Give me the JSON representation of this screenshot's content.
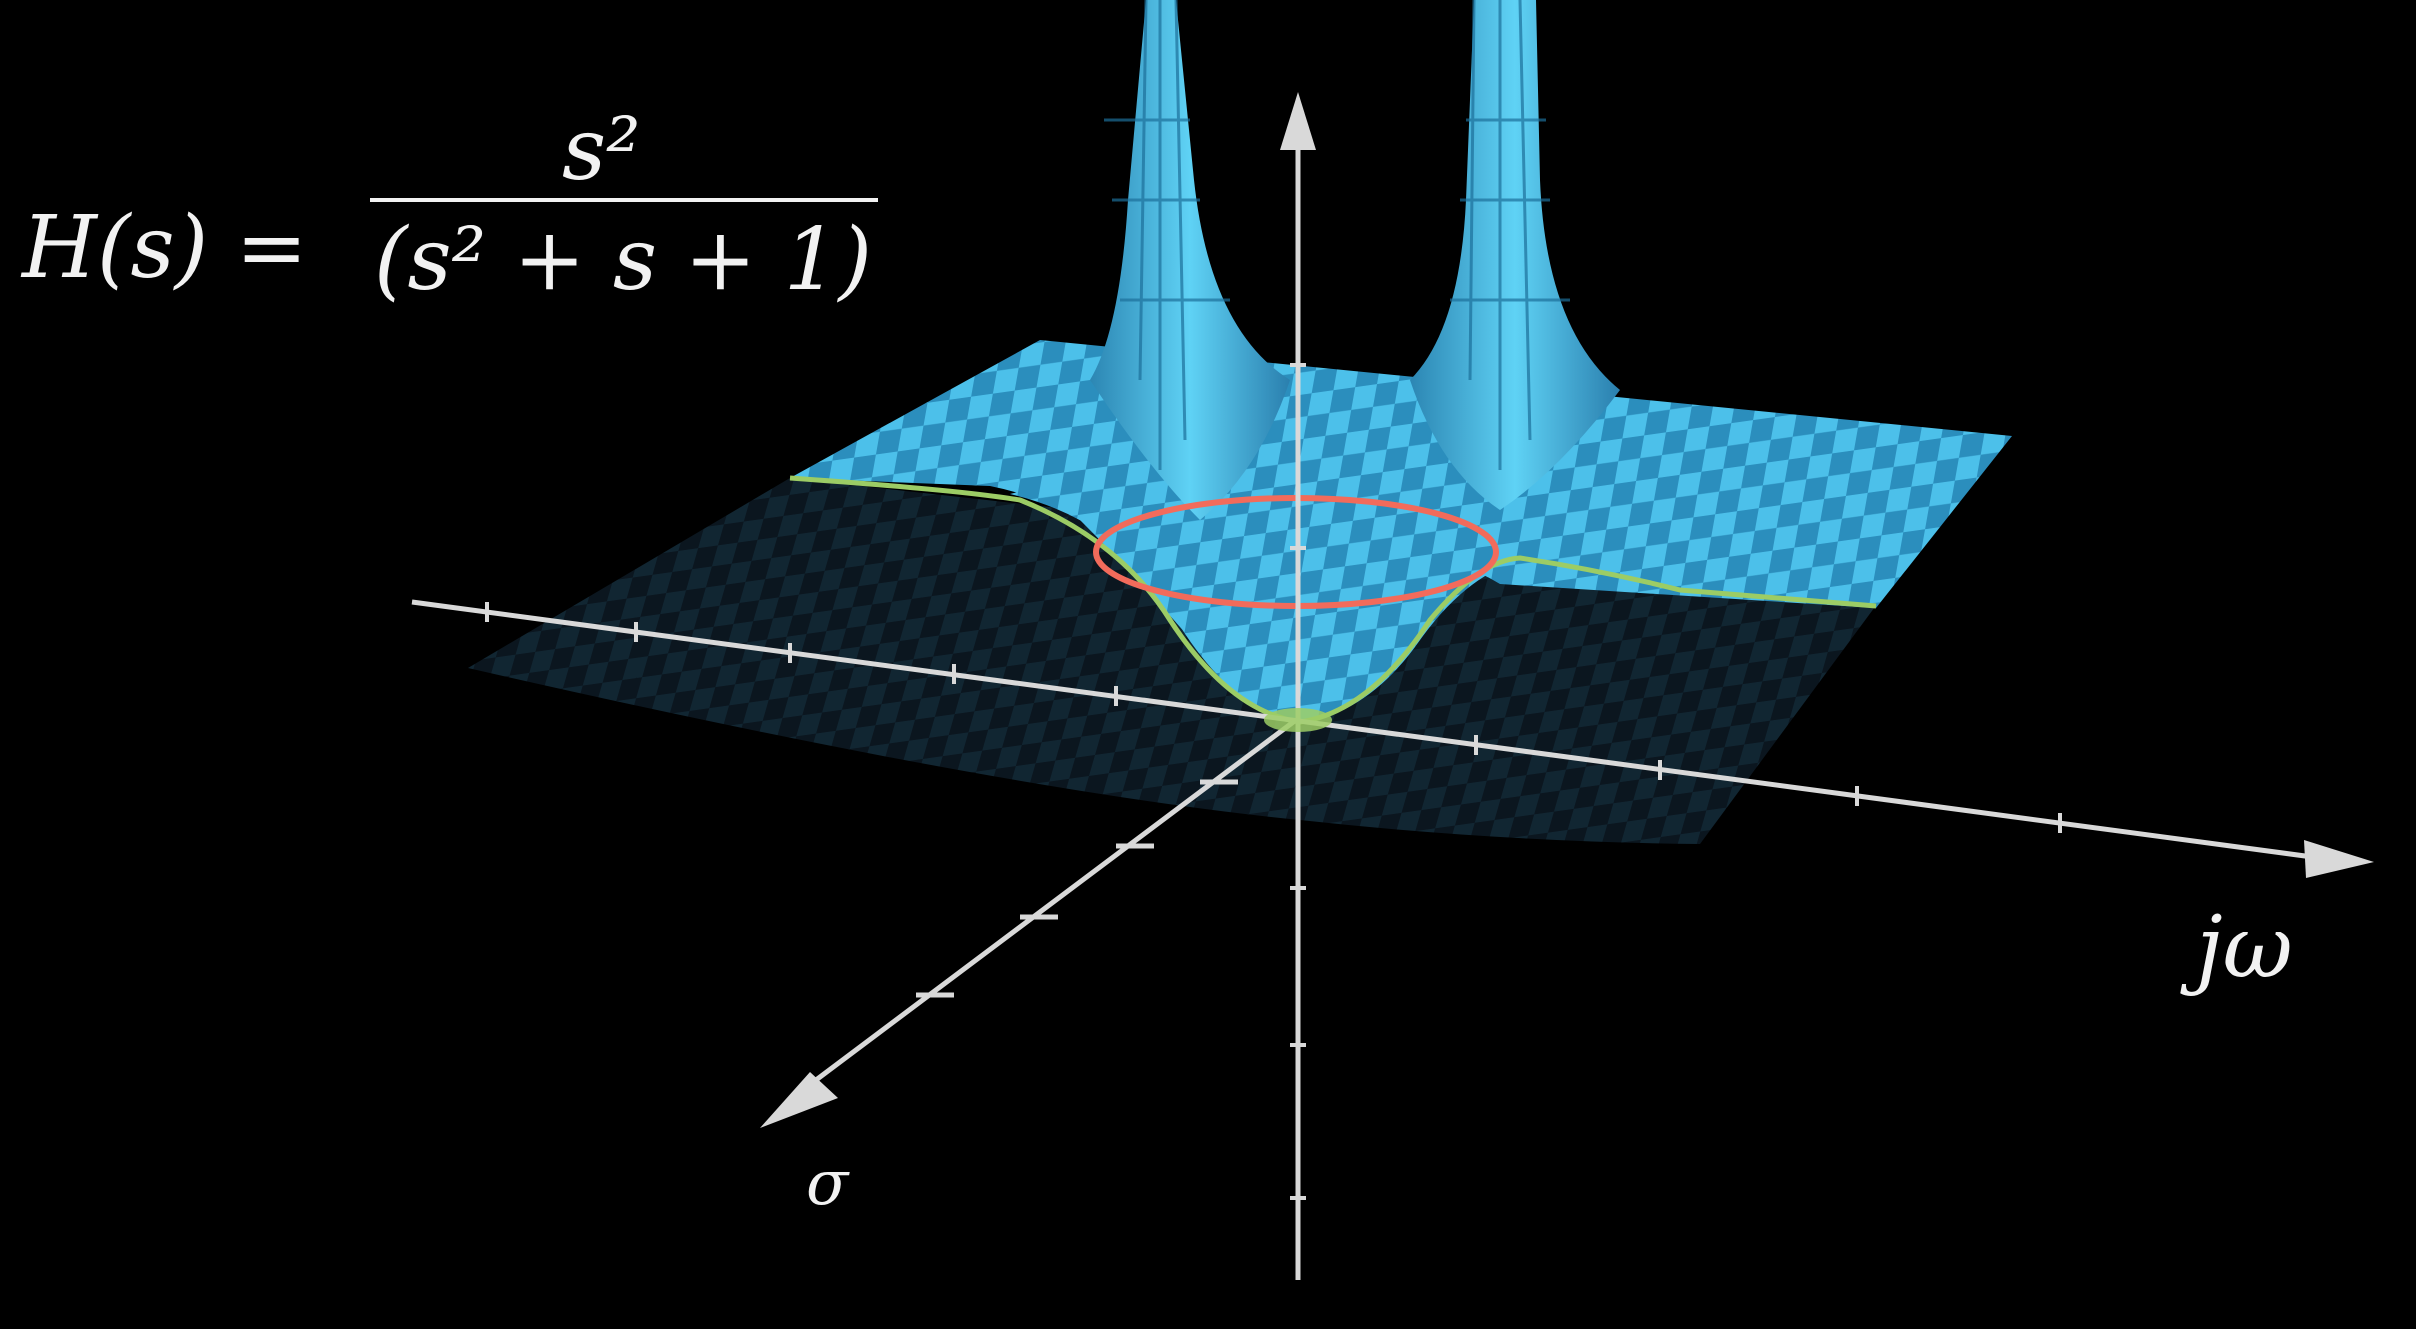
{
  "equation": {
    "lhs": "H(s) =",
    "numerator": "s²",
    "denominator": "(s² + s + 1)"
  },
  "axes": {
    "jw_label": "jω",
    "sigma_label": "σ"
  },
  "colors": {
    "background": "#000000",
    "surface": "#4fc3ec",
    "surface_dark": "#2a8fbf",
    "surface_shadow": "#0d1c26",
    "axis": "#d9d9d9",
    "jw_axis_curve": "#9ccc65",
    "unit_circle": "#f26b5b",
    "zero_marker": "#9ccc65"
  }
}
